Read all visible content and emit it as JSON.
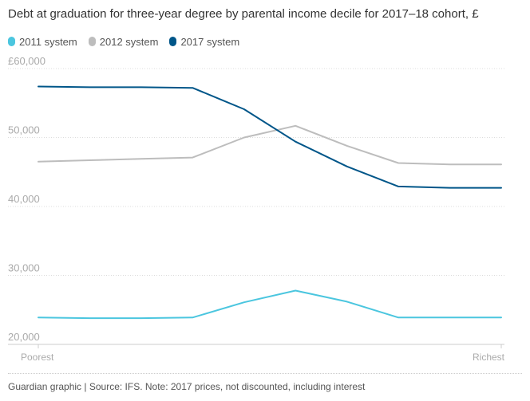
{
  "chart_data": {
    "type": "line",
    "title": "Debt at graduation for three-year degree by parental income decile for 2017–18 cohort, £",
    "x": [
      1,
      2,
      3,
      4,
      5,
      6,
      7,
      8,
      9,
      10
    ],
    "x_tick_labels": [
      {
        "x": 1,
        "label": "Poorest"
      },
      {
        "x": 10,
        "label": "Richest"
      }
    ],
    "y_ticks": [
      {
        "value": 20000,
        "label": "20,000"
      },
      {
        "value": 30000,
        "label": "30,000"
      },
      {
        "value": 40000,
        "label": "40,000"
      },
      {
        "value": 50000,
        "label": "50,000"
      },
      {
        "value": 60000,
        "label": "£60,000"
      }
    ],
    "ylim": [
      20000,
      60000
    ],
    "grid": true,
    "legend_position": "top-left",
    "series": [
      {
        "name": "2011 system",
        "color": "#4bc6df",
        "values": [
          23900,
          23800,
          23800,
          23900,
          26100,
          27800,
          26200,
          23900,
          23900,
          23900
        ]
      },
      {
        "name": "2012 system",
        "color": "#bdbdbd",
        "values": [
          46500,
          46700,
          46900,
          47100,
          50000,
          51700,
          48800,
          46300,
          46100,
          46100
        ]
      },
      {
        "name": "2017 system",
        "color": "#005689",
        "values": [
          57400,
          57300,
          57300,
          57200,
          54100,
          49400,
          45800,
          42900,
          42700,
          42700
        ]
      }
    ]
  },
  "footer": {
    "source": "Guardian graphic | Source: IFS. Note: 2017 prices, not discounted, including interest"
  }
}
